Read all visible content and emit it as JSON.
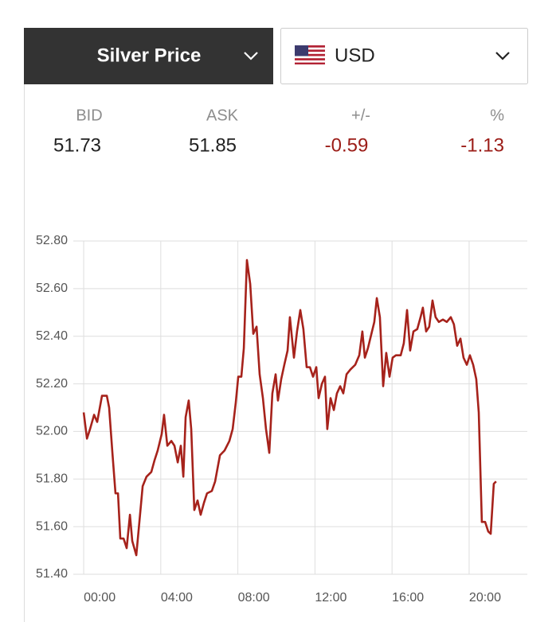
{
  "widget": {
    "selector": "Silver Price",
    "currency": "USD",
    "quote": {
      "labels": [
        "BID",
        "ASK",
        "+/-",
        "%"
      ],
      "values": [
        "51.73",
        "51.85",
        "-0.59",
        "-1.13"
      ]
    }
  },
  "chart_data": {
    "type": "line",
    "color": "#a6221b",
    "grid": true,
    "x": [
      0.0,
      0.17,
      0.33,
      0.54,
      0.7,
      0.95,
      1.2,
      1.32,
      1.49,
      1.65,
      1.78,
      1.9,
      2.07,
      2.23,
      2.4,
      2.52,
      2.73,
      2.89,
      3.06,
      3.26,
      3.51,
      3.68,
      3.84,
      4.05,
      4.17,
      4.34,
      4.55,
      4.71,
      4.88,
      5.04,
      5.17,
      5.29,
      5.45,
      5.58,
      5.74,
      5.91,
      6.07,
      6.24,
      6.4,
      6.65,
      6.82,
      7.07,
      7.31,
      7.56,
      7.73,
      7.89,
      8.02,
      8.18,
      8.31,
      8.47,
      8.64,
      8.8,
      8.97,
      9.13,
      9.3,
      9.46,
      9.63,
      9.79,
      9.96,
      10.08,
      10.25,
      10.41,
      10.58,
      10.7,
      10.91,
      11.07,
      11.24,
      11.4,
      11.57,
      11.74,
      11.9,
      12.07,
      12.19,
      12.36,
      12.52,
      12.64,
      12.81,
      12.98,
      13.14,
      13.31,
      13.47,
      13.64,
      13.84,
      14.09,
      14.3,
      14.46,
      14.59,
      14.75,
      14.96,
      15.08,
      15.21,
      15.37,
      15.54,
      15.7,
      15.87,
      16.03,
      16.2,
      16.45,
      16.61,
      16.78,
      16.94,
      17.11,
      17.31,
      17.48,
      17.6,
      17.77,
      17.93,
      18.1,
      18.26,
      18.43,
      18.64,
      18.84,
      19.05,
      19.21,
      19.38,
      19.55,
      19.71,
      19.88,
      20.04,
      20.21,
      20.37,
      20.5,
      20.66,
      20.83,
      20.99,
      21.12,
      21.28,
      21.4
    ],
    "values": [
      52.08,
      51.97,
      52.01,
      52.07,
      52.04,
      52.15,
      52.15,
      52.1,
      51.91,
      51.74,
      51.74,
      51.55,
      51.55,
      51.51,
      51.65,
      51.54,
      51.48,
      51.62,
      51.77,
      51.81,
      51.83,
      51.88,
      51.92,
      51.99,
      52.07,
      51.94,
      51.96,
      51.94,
      51.87,
      51.94,
      51.81,
      52.06,
      52.13,
      52.01,
      51.67,
      51.71,
      51.65,
      51.7,
      51.74,
      51.75,
      51.79,
      51.9,
      51.92,
      51.96,
      52.01,
      52.12,
      52.23,
      52.23,
      52.35,
      52.72,
      52.62,
      52.41,
      52.44,
      52.24,
      52.14,
      52.01,
      51.91,
      52.16,
      52.24,
      52.13,
      52.22,
      52.28,
      52.34,
      52.48,
      52.31,
      52.42,
      52.51,
      52.43,
      52.27,
      52.27,
      52.23,
      52.27,
      52.14,
      52.2,
      52.23,
      52.01,
      52.14,
      52.09,
      52.16,
      52.19,
      52.16,
      52.24,
      52.26,
      52.28,
      52.32,
      52.42,
      52.31,
      52.35,
      52.42,
      52.46,
      52.56,
      52.48,
      52.19,
      52.33,
      52.23,
      52.31,
      52.32,
      52.32,
      52.37,
      52.51,
      52.34,
      52.42,
      52.43,
      52.48,
      52.52,
      52.42,
      52.44,
      52.55,
      52.48,
      52.46,
      52.47,
      52.46,
      52.48,
      52.45,
      52.36,
      52.39,
      52.31,
      52.28,
      52.32,
      52.28,
      52.22,
      52.08,
      51.62,
      51.62,
      51.58,
      51.57,
      51.78,
      51.79
    ],
    "xlim": [
      -0.54,
      23.02
    ],
    "xticks": [
      {
        "value": 0,
        "label": "00:00"
      },
      {
        "value": 4,
        "label": "04:00"
      },
      {
        "value": 8,
        "label": "08:00"
      },
      {
        "value": 12,
        "label": "12:00"
      },
      {
        "value": 16,
        "label": "16:00"
      },
      {
        "value": 20,
        "label": "20:00"
      }
    ],
    "ylim": [
      51.4,
      52.8
    ],
    "yticks": [
      {
        "value": 52.8,
        "label": "52.80"
      },
      {
        "value": 52.6,
        "label": "52.60"
      },
      {
        "value": 52.4,
        "label": "52.40"
      },
      {
        "value": 52.2,
        "label": "52.20"
      },
      {
        "value": 52,
        "label": "52.00"
      },
      {
        "value": 51.8,
        "label": "51.80"
      },
      {
        "value": 51.6,
        "label": "51.60"
      },
      {
        "value": 51.4,
        "label": "51.40"
      }
    ]
  }
}
